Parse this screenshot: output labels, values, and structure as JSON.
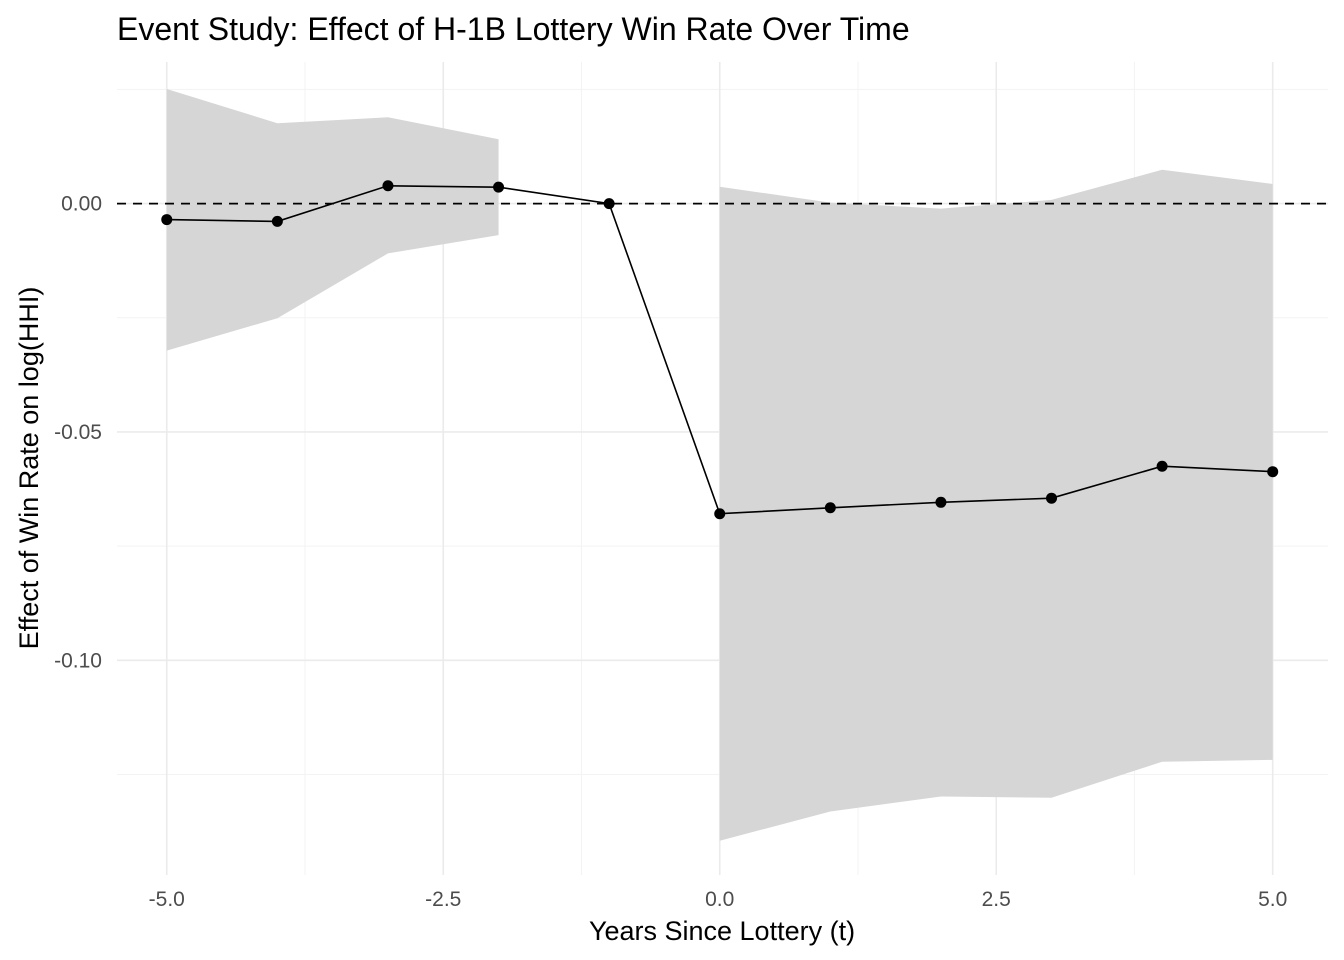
{
  "chart_data": {
    "type": "line",
    "title": "Event Study: Effect of H-1B Lottery Win Rate Over Time",
    "xlabel": "Years Since Lottery (t)",
    "ylabel": "Effect of Win Rate on log(HHI)",
    "xlim": [
      -5.45,
      5.5
    ],
    "ylim": [
      -0.147,
      0.031
    ],
    "x_ticks": [
      -5.0,
      -2.5,
      0.0,
      2.5,
      5.0
    ],
    "x_tick_labels": [
      "-5.0",
      "-2.5",
      "0.0",
      "2.5",
      "5.0"
    ],
    "y_ticks": [
      0.0,
      -0.05,
      -0.1
    ],
    "y_tick_labels": [
      "0.00",
      "-0.05",
      "-0.10"
    ],
    "reference_line": {
      "y": 0,
      "style": "dashed"
    },
    "grid": true,
    "x": [
      -5,
      -4,
      -3,
      -2,
      -1,
      0,
      1,
      2,
      3,
      4,
      5
    ],
    "estimate": [
      -0.0035,
      -0.0039,
      0.0039,
      0.0036,
      0.0,
      -0.0679,
      -0.0666,
      -0.0654,
      -0.0645,
      -0.0575,
      -0.0587
    ],
    "ci_segments": [
      {
        "x": [
          -5,
          -4,
          -3,
          -2
        ],
        "lower": [
          -0.0322,
          -0.0251,
          -0.0109,
          -0.0069
        ],
        "upper": [
          0.0251,
          0.0176,
          0.0189,
          0.0141
        ]
      },
      {
        "x": [
          0,
          1,
          2,
          3,
          4,
          5
        ],
        "lower": [
          -0.1395,
          -0.1331,
          -0.1298,
          -0.1301,
          -0.1222,
          -0.1218
        ],
        "upper": [
          0.0037,
          0.0002,
          -0.0011,
          0.0008,
          0.0074,
          0.0043
        ]
      }
    ],
    "colors": {
      "ribbon": "#d6d6d6",
      "line": "#000000",
      "points": "#000000",
      "reference": "#000000"
    }
  }
}
